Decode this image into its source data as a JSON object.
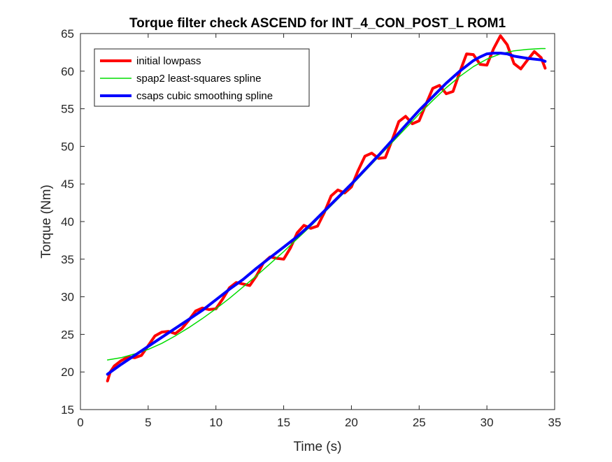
{
  "chart_data": {
    "type": "line",
    "title": "Torque filter check ASCEND for INT_4_CON_POST_L ROM1",
    "xlabel": "Time (s)",
    "ylabel": "Torque (Nm)",
    "xlim": [
      0,
      35
    ],
    "ylim": [
      15,
      65
    ],
    "xticks": [
      "0",
      "5",
      "10",
      "15",
      "20",
      "25",
      "30",
      "35"
    ],
    "yticks": [
      "15",
      "20",
      "25",
      "30",
      "35",
      "40",
      "45",
      "50",
      "55",
      "60",
      "65"
    ],
    "grid": false,
    "legend_position": "top-left",
    "series": [
      {
        "name": "initial lowpass",
        "color": "#ff0000",
        "x": [
          2.0,
          2.2,
          2.5,
          3.0,
          3.5,
          4.0,
          4.5,
          5.0,
          5.5,
          6.0,
          6.5,
          7.0,
          7.5,
          8.0,
          8.5,
          9.0,
          9.5,
          10.0,
          10.5,
          11.0,
          11.5,
          12.0,
          12.5,
          13.0,
          13.5,
          14.0,
          14.5,
          15.0,
          15.5,
          16.0,
          16.5,
          17.0,
          17.5,
          18.0,
          18.5,
          19.0,
          19.5,
          20.0,
          20.5,
          21.0,
          21.5,
          22.0,
          22.5,
          23.0,
          23.5,
          24.0,
          24.5,
          25.0,
          25.5,
          26.0,
          26.5,
          27.0,
          27.5,
          28.0,
          28.5,
          29.0,
          29.5,
          30.0,
          30.5,
          31.0,
          31.5,
          32.0,
          32.5,
          33.0,
          33.5,
          34.0,
          34.3
        ],
        "y": [
          18.8,
          20.0,
          20.8,
          21.5,
          22.0,
          21.9,
          22.2,
          23.5,
          24.8,
          25.3,
          25.4,
          25.1,
          25.8,
          26.9,
          28.1,
          28.5,
          28.3,
          28.4,
          29.7,
          31.2,
          31.9,
          31.7,
          31.5,
          32.8,
          34.5,
          35.3,
          35.1,
          35.0,
          36.5,
          38.5,
          39.5,
          39.1,
          39.4,
          41.2,
          43.4,
          44.2,
          43.8,
          44.6,
          46.8,
          48.7,
          49.1,
          48.4,
          48.5,
          50.8,
          53.3,
          54.0,
          53.0,
          53.4,
          55.6,
          57.7,
          58.1,
          57.0,
          57.3,
          59.9,
          62.3,
          62.2,
          60.9,
          60.8,
          63.0,
          64.7,
          63.5,
          61.0,
          60.3,
          61.5,
          62.6,
          61.8,
          60.4
        ]
      },
      {
        "name": "spap2 least-squares spline",
        "color": "#00dd00",
        "x": [
          2.0,
          3.0,
          4.0,
          5.0,
          6.0,
          7.0,
          8.0,
          9.0,
          10.0,
          11.0,
          12.0,
          13.0,
          14.0,
          15.0,
          16.0,
          17.0,
          18.0,
          19.0,
          20.0,
          21.0,
          22.0,
          23.0,
          24.0,
          25.0,
          26.0,
          27.0,
          28.0,
          29.0,
          30.0,
          31.0,
          32.0,
          33.0,
          34.0,
          34.3
        ],
        "y": [
          21.6,
          21.9,
          22.4,
          23.0,
          23.8,
          24.8,
          25.9,
          27.1,
          28.4,
          29.8,
          31.3,
          32.8,
          34.4,
          36.0,
          37.7,
          39.4,
          41.2,
          43.0,
          44.8,
          46.7,
          48.6,
          50.5,
          52.4,
          54.3,
          56.1,
          57.8,
          59.3,
          60.6,
          61.6,
          62.3,
          62.7,
          62.9,
          63.0,
          63.0
        ]
      },
      {
        "name": "csaps cubic smoothing spline",
        "color": "#0000ff",
        "x": [
          2.0,
          3.0,
          4.0,
          5.0,
          6.0,
          7.0,
          8.0,
          9.0,
          10.0,
          11.0,
          12.0,
          13.0,
          14.0,
          15.0,
          16.0,
          17.0,
          18.0,
          19.0,
          20.0,
          21.0,
          22.0,
          23.0,
          24.0,
          25.0,
          26.0,
          27.0,
          28.0,
          29.0,
          29.5,
          30.0,
          30.5,
          31.0,
          31.5,
          32.0,
          33.0,
          34.0,
          34.3
        ],
        "y": [
          19.7,
          21.0,
          22.2,
          23.4,
          24.6,
          25.8,
          27.0,
          28.2,
          29.6,
          31.0,
          32.3,
          33.8,
          35.2,
          36.6,
          38.0,
          39.6,
          41.4,
          43.2,
          45.0,
          46.9,
          48.8,
          50.8,
          52.8,
          54.8,
          56.6,
          58.4,
          60.0,
          61.4,
          61.9,
          62.3,
          62.4,
          62.4,
          62.3,
          62.0,
          61.7,
          61.5,
          61.3
        ]
      }
    ]
  }
}
